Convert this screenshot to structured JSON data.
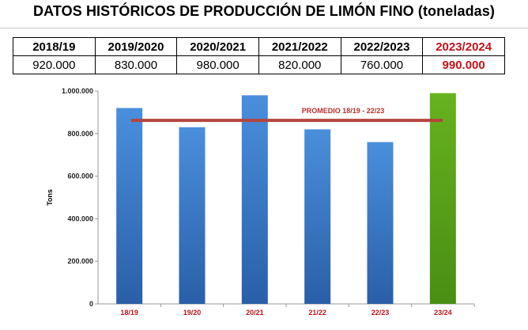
{
  "title": "DATOS HISTÓRICOS DE PRODUCCIÓN DE LIMÓN FINO (toneladas)",
  "table": {
    "headers": [
      "2018/19",
      "2019/2020",
      "2020/2021",
      "2021/2022",
      "2022/2023",
      "2023/2024"
    ],
    "values": [
      "920.000",
      "830.000",
      "980.000",
      "820.000",
      "760.000",
      "990.000"
    ]
  },
  "colors": {
    "bar": "#3b7ccc",
    "bar_highlight": "#5aa21c",
    "average_line": "#b5443e",
    "highlight_text": "#c0141c"
  },
  "chart_data": {
    "type": "bar",
    "categories": [
      "18/19",
      "19/20",
      "20/21",
      "21/22",
      "22/23",
      "23/24"
    ],
    "values": [
      920000,
      830000,
      980000,
      820000,
      760000,
      990000
    ],
    "highlight_index": 5,
    "ylabel": "Tons",
    "ylim": [
      0,
      1000000
    ],
    "yticks": [
      0,
      200000,
      400000,
      600000,
      800000,
      1000000
    ],
    "ytick_labels": [
      "0",
      "200.000",
      "400.000",
      "600.000",
      "800.000",
      "1.000.000"
    ],
    "reference_line": {
      "label": "PROMEDIO 18/19 - 22/23",
      "value": 862000
    },
    "grid": false
  }
}
